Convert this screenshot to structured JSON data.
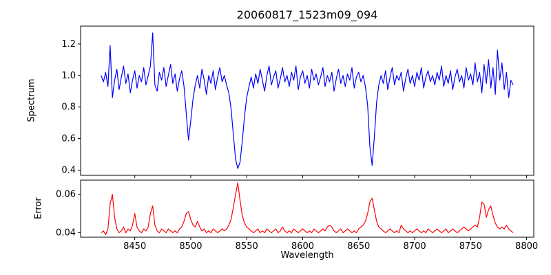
{
  "figure": {
    "title": "20060817_1523m09_094",
    "xlabel": "Wavelength",
    "background": "#ffffff"
  },
  "chart_data": [
    {
      "type": "line",
      "title": "20060817_1523m09_094",
      "ylabel": "Spectrum",
      "color": "#0000ff",
      "legend": "none",
      "grid": false,
      "xlim": [
        8401.6,
        8806.4
      ],
      "ylim": [
        0.367,
        1.313
      ],
      "xticks": [
        8450,
        8500,
        8550,
        8600,
        8650,
        8700,
        8750,
        8800
      ],
      "show_xtick_labels": false,
      "ytick_values": [
        0.4,
        0.6,
        0.8,
        1.0,
        1.2
      ],
      "ytick_labels": [
        "0.4",
        "0.6",
        "0.8",
        "1.0",
        "1.2"
      ],
      "x_start": 8420,
      "x_step": 2,
      "values": [
        1.0,
        0.96,
        1.02,
        0.93,
        1.19,
        0.86,
        0.97,
        1.04,
        0.91,
        0.99,
        1.06,
        0.95,
        1.01,
        0.89,
        0.97,
        1.03,
        0.92,
        1.0,
        0.96,
        1.05,
        0.94,
        1.0,
        1.06,
        1.27,
        0.94,
        0.9,
        1.02,
        0.97,
        1.05,
        0.93,
        1.0,
        1.07,
        0.95,
        1.01,
        0.9,
        0.98,
        1.03,
        0.93,
        0.76,
        0.59,
        0.71,
        0.85,
        0.94,
        1.0,
        0.92,
        1.04,
        0.97,
        0.88,
        1.0,
        0.95,
        1.03,
        0.91,
        0.99,
        1.05,
        0.96,
        1.0,
        0.94,
        0.89,
        0.79,
        0.63,
        0.47,
        0.41,
        0.45,
        0.58,
        0.74,
        0.86,
        0.93,
        0.99,
        0.92,
        1.01,
        0.95,
        1.04,
        0.97,
        0.9,
        1.0,
        1.06,
        0.94,
        0.99,
        1.03,
        0.92,
        0.98,
        1.05,
        0.96,
        1.0,
        0.93,
        1.02,
        0.97,
        1.06,
        0.91,
        0.99,
        1.03,
        0.95,
        1.0,
        0.92,
        1.04,
        0.97,
        1.01,
        0.94,
        0.99,
        1.05,
        0.93,
        1.0,
        0.96,
        1.02,
        0.9,
        0.98,
        1.04,
        0.95,
        1.0,
        0.93,
        1.01,
        0.97,
        1.05,
        0.92,
        0.99,
        1.02,
        0.96,
        1.0,
        0.93,
        0.81,
        0.55,
        0.43,
        0.61,
        0.83,
        0.94,
        1.0,
        0.95,
        1.03,
        0.91,
        0.99,
        1.05,
        0.94,
        1.0,
        0.97,
        1.02,
        0.9,
        0.98,
        1.04,
        0.95,
        1.0,
        0.93,
        1.02,
        0.97,
        1.05,
        0.92,
        0.99,
        1.03,
        0.96,
        1.0,
        0.94,
        1.02,
        0.97,
        1.06,
        0.93,
        1.0,
        0.95,
        1.03,
        0.91,
        0.99,
        1.04,
        0.96,
        1.0,
        0.92,
        1.05,
        0.97,
        1.01,
        0.94,
        1.08,
        0.96,
        1.02,
        0.89,
        1.07,
        0.95,
        1.1,
        0.92,
        1.05,
        0.88,
        1.16,
        0.97,
        1.08,
        0.91,
        1.02,
        0.86,
        0.97,
        0.94
      ],
      "annotations": {
        "absorption_lines_x": [
          8498,
          8542,
          8662
        ],
        "absorption_depths": [
          0.59,
          0.41,
          0.43
        ],
        "emission_spike_x": 8466,
        "emission_spike_y": 1.27
      }
    },
    {
      "type": "line",
      "ylabel": "Error",
      "xlabel": "Wavelength",
      "color": "#ff0000",
      "legend": "none",
      "grid": false,
      "xlim": [
        8401.6,
        8806.4
      ],
      "ylim": [
        0.0377,
        0.0674
      ],
      "xticks": [
        8450,
        8500,
        8550,
        8600,
        8650,
        8700,
        8750,
        8800
      ],
      "show_xtick_labels": true,
      "ytick_values": [
        0.04,
        0.06
      ],
      "ytick_labels": [
        "0.04",
        "0.06"
      ],
      "x_start": 8420,
      "x_step": 2,
      "values": [
        0.04,
        0.041,
        0.039,
        0.042,
        0.055,
        0.06,
        0.048,
        0.042,
        0.04,
        0.041,
        0.043,
        0.04,
        0.042,
        0.041,
        0.044,
        0.05,
        0.043,
        0.041,
        0.04,
        0.042,
        0.041,
        0.043,
        0.05,
        0.054,
        0.044,
        0.041,
        0.04,
        0.042,
        0.041,
        0.04,
        0.042,
        0.041,
        0.04,
        0.041,
        0.04,
        0.042,
        0.043,
        0.046,
        0.05,
        0.051,
        0.047,
        0.044,
        0.043,
        0.046,
        0.043,
        0.041,
        0.042,
        0.04,
        0.041,
        0.04,
        0.042,
        0.041,
        0.04,
        0.041,
        0.042,
        0.041,
        0.042,
        0.044,
        0.047,
        0.053,
        0.06,
        0.066,
        0.057,
        0.049,
        0.045,
        0.043,
        0.042,
        0.041,
        0.04,
        0.041,
        0.042,
        0.04,
        0.041,
        0.04,
        0.042,
        0.041,
        0.04,
        0.041,
        0.042,
        0.04,
        0.041,
        0.043,
        0.041,
        0.04,
        0.041,
        0.04,
        0.042,
        0.041,
        0.04,
        0.041,
        0.042,
        0.041,
        0.04,
        0.041,
        0.04,
        0.042,
        0.041,
        0.04,
        0.041,
        0.042,
        0.041,
        0.043,
        0.044,
        0.043,
        0.041,
        0.04,
        0.041,
        0.042,
        0.04,
        0.041,
        0.042,
        0.041,
        0.04,
        0.041,
        0.04,
        0.042,
        0.043,
        0.044,
        0.046,
        0.05,
        0.056,
        0.058,
        0.052,
        0.046,
        0.043,
        0.042,
        0.041,
        0.04,
        0.041,
        0.042,
        0.041,
        0.04,
        0.041,
        0.04,
        0.044,
        0.042,
        0.041,
        0.04,
        0.041,
        0.04,
        0.041,
        0.042,
        0.041,
        0.04,
        0.041,
        0.04,
        0.042,
        0.041,
        0.04,
        0.041,
        0.042,
        0.041,
        0.04,
        0.041,
        0.042,
        0.04,
        0.041,
        0.042,
        0.041,
        0.04,
        0.041,
        0.042,
        0.043,
        0.042,
        0.041,
        0.042,
        0.043,
        0.044,
        0.043,
        0.048,
        0.056,
        0.055,
        0.048,
        0.052,
        0.054,
        0.049,
        0.045,
        0.043,
        0.042,
        0.043,
        0.042,
        0.044,
        0.042,
        0.041,
        0.04
      ]
    }
  ]
}
